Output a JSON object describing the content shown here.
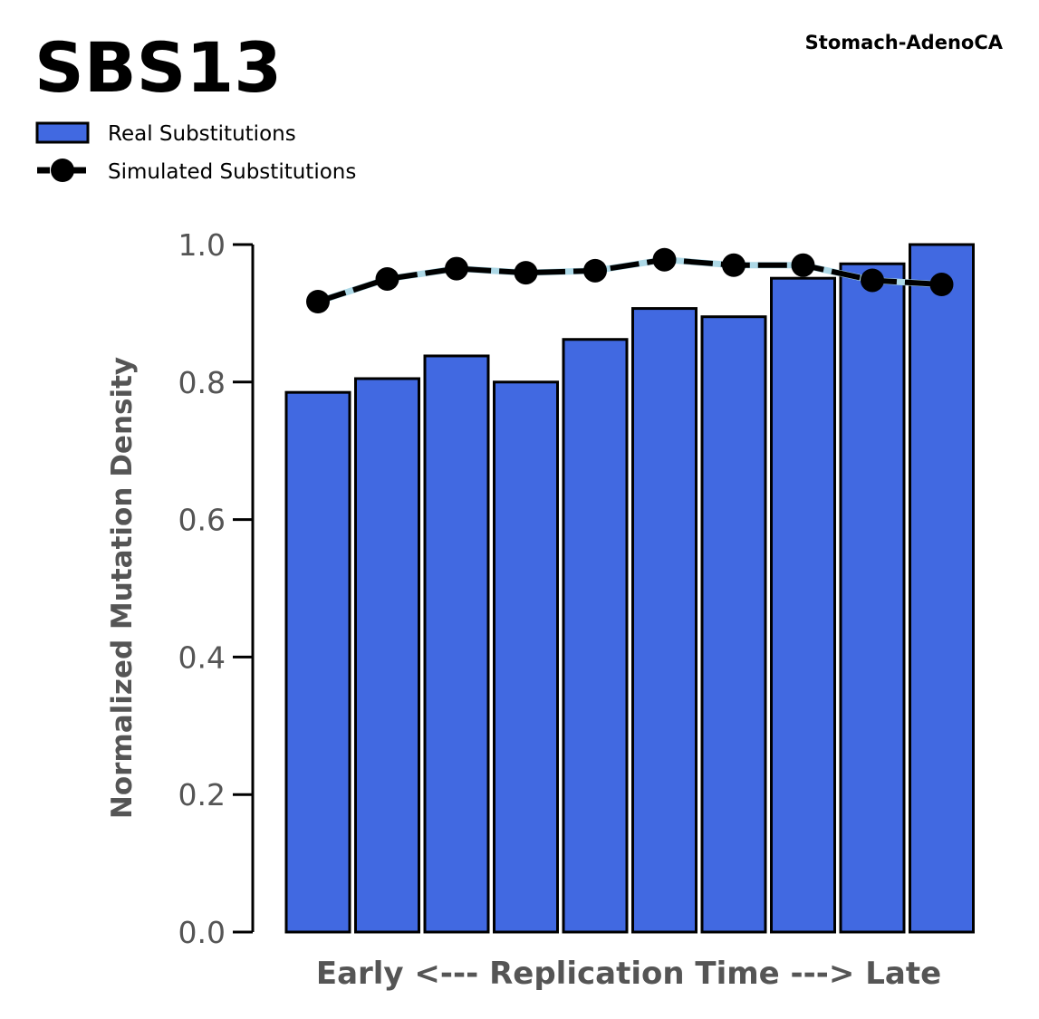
{
  "chart_data": {
    "type": "bar",
    "title": "SBS13",
    "subtitle": "Stomach-AdenoCA",
    "xlabel": "Early <--- Replication Time ---> Late",
    "ylabel": "Normalized Mutation Density",
    "ylim": [
      0,
      1.0
    ],
    "yticks": [
      "0.0",
      "0.2",
      "0.4",
      "0.6",
      "0.8",
      "1.0"
    ],
    "ytick_values": [
      0,
      0.2,
      0.4,
      0.6,
      0.8,
      1.0
    ],
    "grid": false,
    "legend_placement": "top-left",
    "bins": [
      1,
      2,
      3,
      4,
      5,
      6,
      7,
      8,
      9,
      10
    ],
    "series": [
      {
        "name": "Real Substitutions",
        "kind": "bar",
        "color": "#4169e1",
        "values": [
          0.785,
          0.805,
          0.838,
          0.8,
          0.862,
          0.907,
          0.895,
          0.951,
          0.972,
          1.0
        ]
      },
      {
        "name": "Simulated Substitutions",
        "kind": "line",
        "color": "#000000",
        "band_color": "#add8e6",
        "values": [
          0.917,
          0.95,
          0.965,
          0.959,
          0.962,
          0.978,
          0.97,
          0.97,
          0.948,
          0.942
        ]
      }
    ]
  }
}
